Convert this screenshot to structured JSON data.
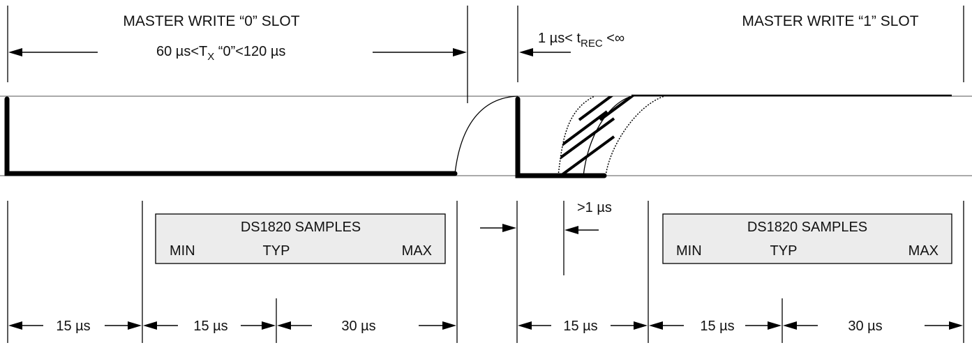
{
  "titles": {
    "write0": "MASTER WRITE “0” SLOT",
    "write1": "MASTER WRITE “1” SLOT"
  },
  "tx": {
    "prefix": "60 µs<T",
    "sub": "X",
    "suffix": " “0”<120 µs"
  },
  "trec": {
    "prefix": "1 µs< t",
    "sub": "REC",
    "suffix": " <∞"
  },
  "gt1": ">1 µs",
  "samples_left": {
    "title": "DS1820 SAMPLES",
    "min": "MIN",
    "typ": "TYP",
    "max": "MAX"
  },
  "samples_right": {
    "title": "DS1820 SAMPLES",
    "min": "MIN",
    "typ": "TYP",
    "max": "MAX"
  },
  "timing_left": [
    "15 µs",
    "15 µs",
    "30 µs"
  ],
  "timing_right": [
    "15 µs",
    "15 µs",
    "30 µs"
  ]
}
